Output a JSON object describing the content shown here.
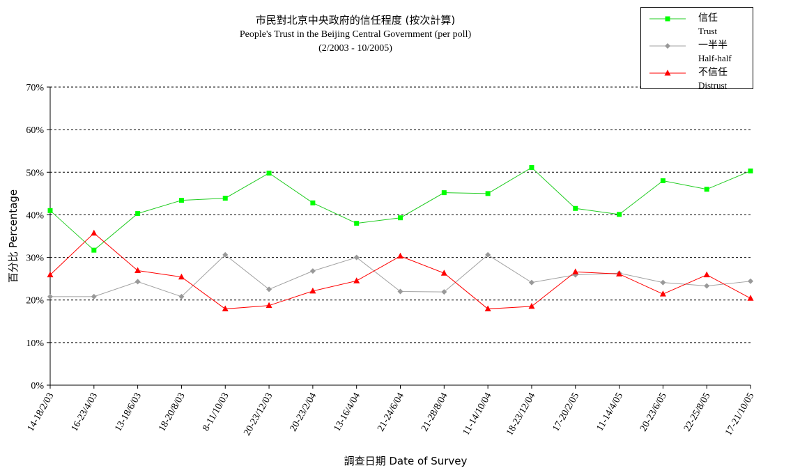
{
  "title": {
    "zh": "市民對北京中央政府的信任程度 (按次計算)",
    "en": "People's Trust in the Beijing Central Government (per poll)",
    "range": "(2/2003 -  10/2005)"
  },
  "chart_data": {
    "type": "line",
    "categories": [
      "14-18/2/03",
      "16-23/4/03",
      "13-18/6/03",
      "18-20/8/03",
      "8-11/10/03",
      "20-23/12/03",
      "20-23/2/04",
      "13-16/4/04",
      "21-24/6/04",
      "21-28/8/04",
      "11-14/10/04",
      "18-23/12/04",
      "17-20/2/05",
      "11-14/4/05",
      "20-23/6/05",
      "22-25/8/05",
      "17-21/10/05"
    ],
    "series": [
      {
        "name": "信任",
        "name_en": "Trust",
        "color": "#00ff00",
        "line_color": "#22cc22",
        "marker": "square",
        "values": [
          41.0,
          31.7,
          40.3,
          43.4,
          43.9,
          49.8,
          42.8,
          38.0,
          39.3,
          45.2,
          45.0,
          51.1,
          41.5,
          40.1,
          48.0,
          46.0,
          50.3
        ]
      },
      {
        "name": "一半半",
        "name_en": "Half-half",
        "color": "#999999",
        "line_color": "#a0a0a0",
        "marker": "diamond",
        "values": [
          20.8,
          20.8,
          24.3,
          20.8,
          30.6,
          22.5,
          26.8,
          30.0,
          22.0,
          21.9,
          30.6,
          24.1,
          25.9,
          26.3,
          24.1,
          23.3,
          24.4
        ]
      },
      {
        "name": "不信任",
        "name_en": "Distrust",
        "color": "#ff0000",
        "line_color": "#ff0000",
        "marker": "triangle",
        "values": [
          25.9,
          35.7,
          26.9,
          25.4,
          17.9,
          18.7,
          22.1,
          24.5,
          30.3,
          26.3,
          17.9,
          18.5,
          26.6,
          26.1,
          21.4,
          25.9,
          20.4
        ]
      }
    ],
    "yticks": [
      "0%",
      "10%",
      "20%",
      "30%",
      "40%",
      "50%",
      "60%",
      "70%"
    ],
    "ylim": [
      0,
      70
    ],
    "ylabel": "百分比 Percentage",
    "xlabel": "調查日期 Date of Survey",
    "grid": "horizontal dashed",
    "legend_position": "top-right"
  }
}
